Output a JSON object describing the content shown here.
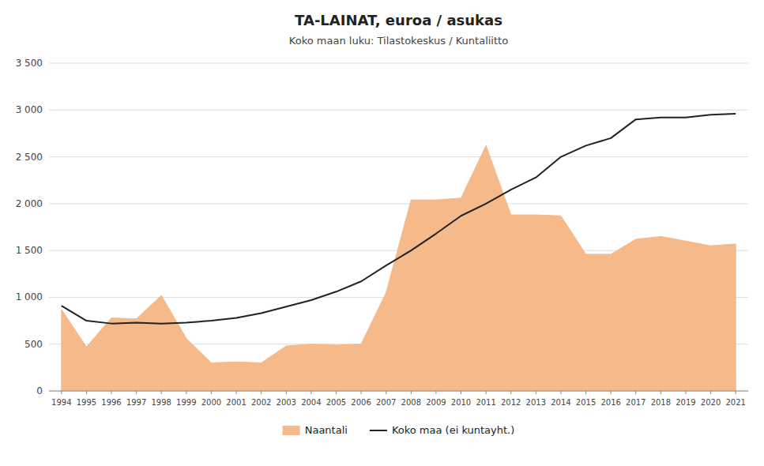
{
  "chart_data": {
    "type": "line",
    "title": "TA-LAINAT, euroa / asukas",
    "subtitle": "Koko maan luku:  Tilastokeskus / Kuntaliitto",
    "x": [
      1994,
      1995,
      1996,
      1997,
      1998,
      1999,
      2000,
      2001,
      2002,
      2003,
      2004,
      2005,
      2006,
      2007,
      2008,
      2009,
      2010,
      2011,
      2012,
      2013,
      2014,
      2015,
      2016,
      2017,
      2018,
      2019,
      2020,
      2021
    ],
    "series": [
      {
        "name": "Naantali",
        "type": "area",
        "color": "#f5b98a",
        "values": [
          870,
          470,
          780,
          770,
          1020,
          560,
          300,
          310,
          300,
          480,
          500,
          490,
          500,
          1050,
          2040,
          2040,
          2060,
          2620,
          1880,
          1880,
          1870,
          1460,
          1460,
          1620,
          1650,
          1600,
          1550,
          1570
        ]
      },
      {
        "name": "Koko maa (ei kuntayht.)",
        "type": "line",
        "color": "#222222",
        "values": [
          910,
          750,
          720,
          730,
          720,
          730,
          750,
          780,
          830,
          900,
          970,
          1060,
          1170,
          1340,
          1500,
          1680,
          1870,
          2000,
          2150,
          2280,
          2500,
          2620,
          2700,
          2900,
          2920,
          2920,
          2950,
          2960
        ]
      }
    ],
    "xlim": [
      1993.5,
      2021.5
    ],
    "xticks": [
      1994,
      1995,
      1996,
      1997,
      1998,
      1999,
      2000,
      2001,
      2002,
      2003,
      2004,
      2005,
      2006,
      2007,
      2008,
      2009,
      2010,
      2011,
      2012,
      2013,
      2014,
      2015,
      2016,
      2017,
      2018,
      2019,
      2020,
      2021
    ],
    "ylim": [
      0,
      3500
    ],
    "yticks": [
      0,
      500,
      {
        "value": 1000,
        "label": "1 000"
      },
      {
        "value": 1500,
        "label": "1 500"
      },
      {
        "value": 2000,
        "label": "2 000"
      },
      {
        "value": 2500,
        "label": "2 500"
      },
      {
        "value": 3000,
        "label": "3 000"
      },
      {
        "value": 3500,
        "label": "3 500"
      }
    ],
    "grid": true,
    "legend": "bottom"
  }
}
